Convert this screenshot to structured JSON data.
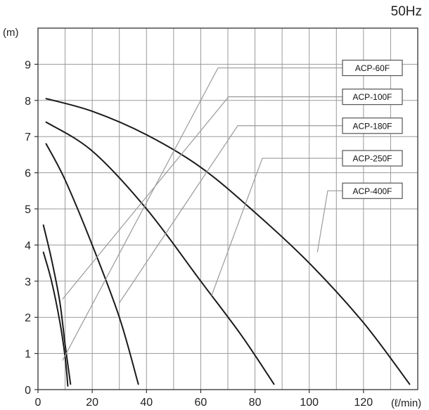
{
  "chart_data": {
    "type": "line",
    "title": "50Hz",
    "ylabel": "(m)",
    "xlabel": "(ℓ/min)",
    "xlim": [
      0,
      140
    ],
    "ylim": [
      0,
      10
    ],
    "x_ticks": [
      0,
      20,
      40,
      60,
      80,
      100,
      120
    ],
    "y_ticks": [
      0,
      1,
      2,
      3,
      4,
      5,
      6,
      7,
      8,
      9
    ],
    "grid": true,
    "series": [
      {
        "name": "ACP-60F",
        "x": [
          2,
          5,
          8,
          10,
          11
        ],
        "y": [
          3.8,
          3.0,
          1.9,
          0.9,
          0.1
        ],
        "label_anchor": [
          9,
          0.8
        ],
        "label_y": 8.9
      },
      {
        "name": "ACP-100F",
        "x": [
          2,
          5,
          8,
          10,
          12
        ],
        "y": [
          4.55,
          3.6,
          2.45,
          1.25,
          0.15
        ],
        "label_anchor": [
          9,
          2.5
        ],
        "label_y": 8.1
      },
      {
        "name": "ACP-180F",
        "x": [
          3,
          10,
          20,
          30,
          37
        ],
        "y": [
          6.8,
          5.8,
          4.0,
          2.0,
          0.15
        ],
        "label_anchor": [
          30,
          2.4
        ],
        "label_y": 7.3
      },
      {
        "name": "ACP-250F",
        "x": [
          3,
          20,
          40,
          60,
          75,
          87
        ],
        "y": [
          7.4,
          6.6,
          5.0,
          3.0,
          1.5,
          0.15
        ],
        "label_anchor": [
          64,
          2.6
        ],
        "label_y": 6.4
      },
      {
        "name": "ACP-400F",
        "x": [
          3,
          20,
          40,
          60,
          80,
          100,
          120,
          137
        ],
        "y": [
          8.05,
          7.7,
          7.05,
          6.15,
          4.9,
          3.5,
          1.85,
          0.15
        ],
        "label_anchor": [
          103,
          3.8
        ],
        "label_y": 5.5
      }
    ]
  }
}
